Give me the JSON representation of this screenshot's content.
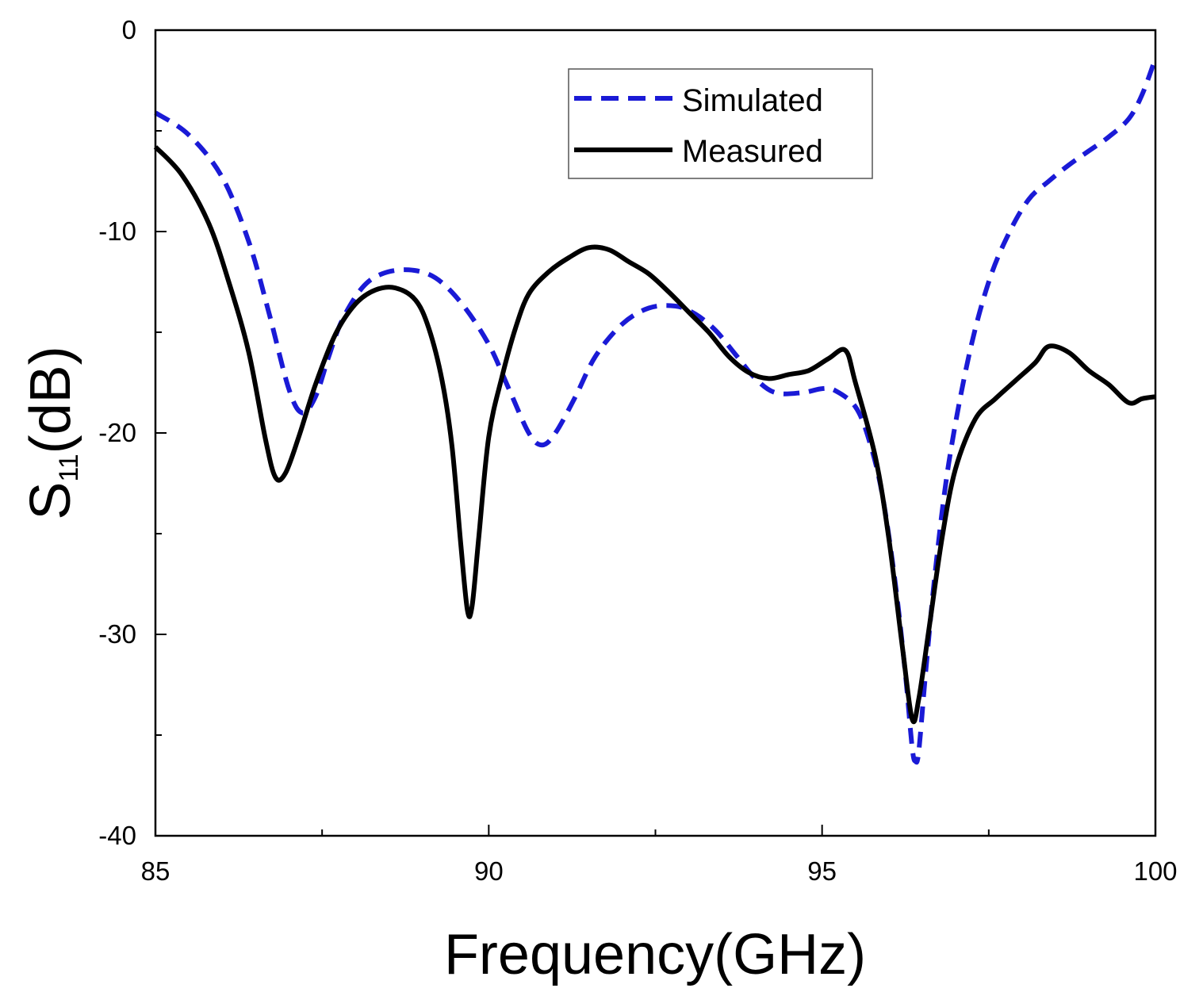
{
  "chart_data": {
    "type": "line",
    "title": "",
    "xlabel": "Frequency(GHz)",
    "ylabel": {
      "main": "S",
      "sub": "11",
      "unit": "(dB)"
    },
    "xlim": [
      85,
      100
    ],
    "ylim": [
      -40,
      0
    ],
    "x_ticks": [
      85,
      90,
      95,
      100
    ],
    "x_minor_ticks": [
      87.5,
      92.5,
      97.5
    ],
    "y_ticks": [
      0,
      -10,
      -20,
      -30,
      -40
    ],
    "grid": false,
    "legend_position": "top-right",
    "series": [
      {
        "name": "Simulated",
        "color": "#1a1ad6",
        "style": "dashed",
        "points": [
          [
            85,
            -4.1
          ],
          [
            85.5,
            -5.2
          ],
          [
            86,
            -7.3
          ],
          [
            86.4,
            -10.5
          ],
          [
            86.7,
            -14
          ],
          [
            87,
            -17.8
          ],
          [
            87.2,
            -19
          ],
          [
            87.4,
            -18.2
          ],
          [
            87.6,
            -16.2
          ],
          [
            87.8,
            -14.4
          ],
          [
            88.1,
            -12.8
          ],
          [
            88.4,
            -12.1
          ],
          [
            88.8,
            -11.9
          ],
          [
            89.2,
            -12.3
          ],
          [
            89.6,
            -13.6
          ],
          [
            90,
            -15.6
          ],
          [
            90.3,
            -17.8
          ],
          [
            90.6,
            -20
          ],
          [
            90.8,
            -20.6
          ],
          [
            91,
            -20
          ],
          [
            91.3,
            -18.2
          ],
          [
            91.6,
            -16.2
          ],
          [
            92,
            -14.6
          ],
          [
            92.4,
            -13.8
          ],
          [
            92.8,
            -13.7
          ],
          [
            93.1,
            -14.1
          ],
          [
            93.4,
            -14.9
          ],
          [
            93.7,
            -16.1
          ],
          [
            94,
            -17.3
          ],
          [
            94.3,
            -18
          ],
          [
            94.7,
            -18
          ],
          [
            95,
            -17.8
          ],
          [
            95.2,
            -17.9
          ],
          [
            95.5,
            -18.7
          ],
          [
            95.7,
            -20.3
          ],
          [
            95.9,
            -23
          ],
          [
            96.1,
            -27.5
          ],
          [
            96.25,
            -32
          ],
          [
            96.35,
            -35.6
          ],
          [
            96.4,
            -36.3
          ],
          [
            96.45,
            -35.8
          ],
          [
            96.55,
            -32
          ],
          [
            96.7,
            -26.8
          ],
          [
            96.9,
            -21.5
          ],
          [
            97.2,
            -16.2
          ],
          [
            97.5,
            -12.5
          ],
          [
            97.8,
            -10.1
          ],
          [
            98.1,
            -8.4
          ],
          [
            98.4,
            -7.5
          ],
          [
            98.7,
            -6.7
          ],
          [
            99,
            -6
          ],
          [
            99.3,
            -5.3
          ],
          [
            99.6,
            -4.4
          ],
          [
            99.8,
            -3.2
          ],
          [
            100,
            -1.4
          ]
        ]
      },
      {
        "name": "Measured",
        "color": "#000000",
        "style": "solid",
        "points": [
          [
            85,
            -5.8
          ],
          [
            85.4,
            -7.2
          ],
          [
            85.8,
            -9.6
          ],
          [
            86.1,
            -12.5
          ],
          [
            86.4,
            -16
          ],
          [
            86.65,
            -20.3
          ],
          [
            86.8,
            -22.2
          ],
          [
            86.95,
            -22
          ],
          [
            87.15,
            -20.2
          ],
          [
            87.4,
            -17.6
          ],
          [
            87.7,
            -15.1
          ],
          [
            88,
            -13.6
          ],
          [
            88.3,
            -12.9
          ],
          [
            88.6,
            -12.8
          ],
          [
            88.9,
            -13.4
          ],
          [
            89.1,
            -14.8
          ],
          [
            89.3,
            -17.4
          ],
          [
            89.45,
            -20.7
          ],
          [
            89.58,
            -25.5
          ],
          [
            89.68,
            -28.8
          ],
          [
            89.75,
            -28.6
          ],
          [
            89.85,
            -25.2
          ],
          [
            90,
            -20.2
          ],
          [
            90.2,
            -17.2
          ],
          [
            90.4,
            -14.8
          ],
          [
            90.6,
            -13.1
          ],
          [
            90.9,
            -12
          ],
          [
            91.2,
            -11.3
          ],
          [
            91.5,
            -10.8
          ],
          [
            91.8,
            -10.9
          ],
          [
            92.1,
            -11.5
          ],
          [
            92.4,
            -12.1
          ],
          [
            92.7,
            -13
          ],
          [
            93,
            -14
          ],
          [
            93.3,
            -15
          ],
          [
            93.6,
            -16.2
          ],
          [
            93.9,
            -17
          ],
          [
            94.2,
            -17.3
          ],
          [
            94.5,
            -17.1
          ],
          [
            94.8,
            -16.9
          ],
          [
            95.1,
            -16.3
          ],
          [
            95.35,
            -15.9
          ],
          [
            95.5,
            -17.5
          ],
          [
            95.8,
            -21.2
          ],
          [
            96,
            -25.2
          ],
          [
            96.2,
            -30.5
          ],
          [
            96.35,
            -34.2
          ],
          [
            96.45,
            -33.2
          ],
          [
            96.6,
            -29.8
          ],
          [
            96.8,
            -25.2
          ],
          [
            97,
            -21.8
          ],
          [
            97.3,
            -19.3
          ],
          [
            97.6,
            -18.3
          ],
          [
            97.9,
            -17.4
          ],
          [
            98.2,
            -16.5
          ],
          [
            98.4,
            -15.7
          ],
          [
            98.7,
            -16
          ],
          [
            99,
            -16.9
          ],
          [
            99.3,
            -17.6
          ],
          [
            99.6,
            -18.5
          ],
          [
            99.8,
            -18.3
          ],
          [
            100,
            -18.2
          ]
        ]
      }
    ]
  }
}
